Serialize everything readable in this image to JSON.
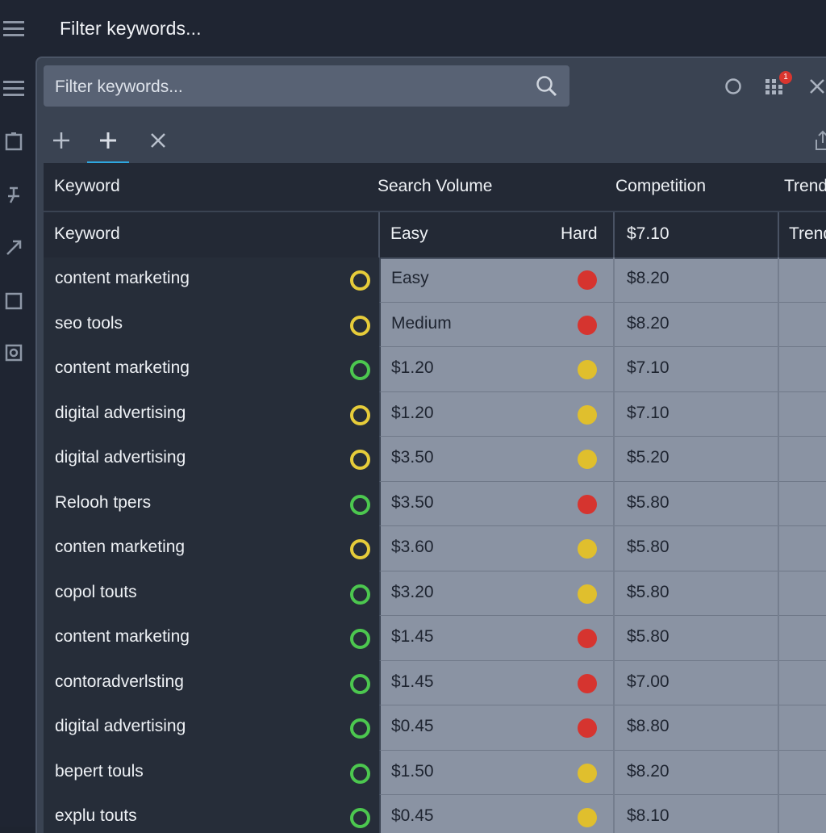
{
  "app": {
    "title": "Filter keywords..."
  },
  "search": {
    "placeholder": "Filter keywords..."
  },
  "toolbar": {
    "notification_count": "1"
  },
  "table": {
    "headers_top": {
      "keyword": "Keyword",
      "volume": "Search Volume",
      "competition": "Competition",
      "trend": "Trend"
    },
    "headers_sub": {
      "keyword": "Keyword",
      "easy": "Easy",
      "hard": "Hard",
      "cpc": "$7.10",
      "trend": "Trend"
    },
    "rows": [
      {
        "keyword": "content marketing",
        "ring": "yellow",
        "volume": "Easy",
        "dot": "red",
        "cpc": "$8.20"
      },
      {
        "keyword": "seo tools",
        "ring": "yellow",
        "volume": "Medium",
        "dot": "red",
        "cpc": "$8.20"
      },
      {
        "keyword": "content marketing",
        "ring": "green",
        "volume": "$1.20",
        "dot": "yellow",
        "cpc": "$7.10"
      },
      {
        "keyword": "digital advertising",
        "ring": "yellow",
        "volume": "$1.20",
        "dot": "yellow",
        "cpc": "$7.10"
      },
      {
        "keyword": "digital advertising",
        "ring": "yellow",
        "volume": "$3.50",
        "dot": "yellow",
        "cpc": "$5.20"
      },
      {
        "keyword": "Relooh tpers",
        "ring": "green",
        "volume": "$3.50",
        "dot": "red",
        "cpc": "$5.80"
      },
      {
        "keyword": "conten marketing",
        "ring": "yellow",
        "volume": "$3.60",
        "dot": "yellow",
        "cpc": "$5.80"
      },
      {
        "keyword": "copol touts",
        "ring": "green",
        "volume": "$3.20",
        "dot": "yellow",
        "cpc": "$5.80"
      },
      {
        "keyword": "content marketing",
        "ring": "green",
        "volume": "$1.45",
        "dot": "red",
        "cpc": "$5.80"
      },
      {
        "keyword": "contoradverlsting",
        "ring": "green",
        "volume": "$1.45",
        "dot": "red",
        "cpc": "$7.00"
      },
      {
        "keyword": "digital advertising",
        "ring": "green",
        "volume": "$0.45",
        "dot": "red",
        "cpc": "$8.80"
      },
      {
        "keyword": "bepert touls",
        "ring": "green",
        "volume": "$1.50",
        "dot": "yellow",
        "cpc": "$8.20"
      },
      {
        "keyword": "explu touts",
        "ring": "green",
        "volume": "$0.45",
        "dot": "yellow",
        "cpc": "$8.10"
      }
    ]
  },
  "colors": {
    "accent": "#2ea7e0",
    "yellow": "#e0bf2d",
    "red": "#d6342f",
    "green": "#4cc74f"
  }
}
